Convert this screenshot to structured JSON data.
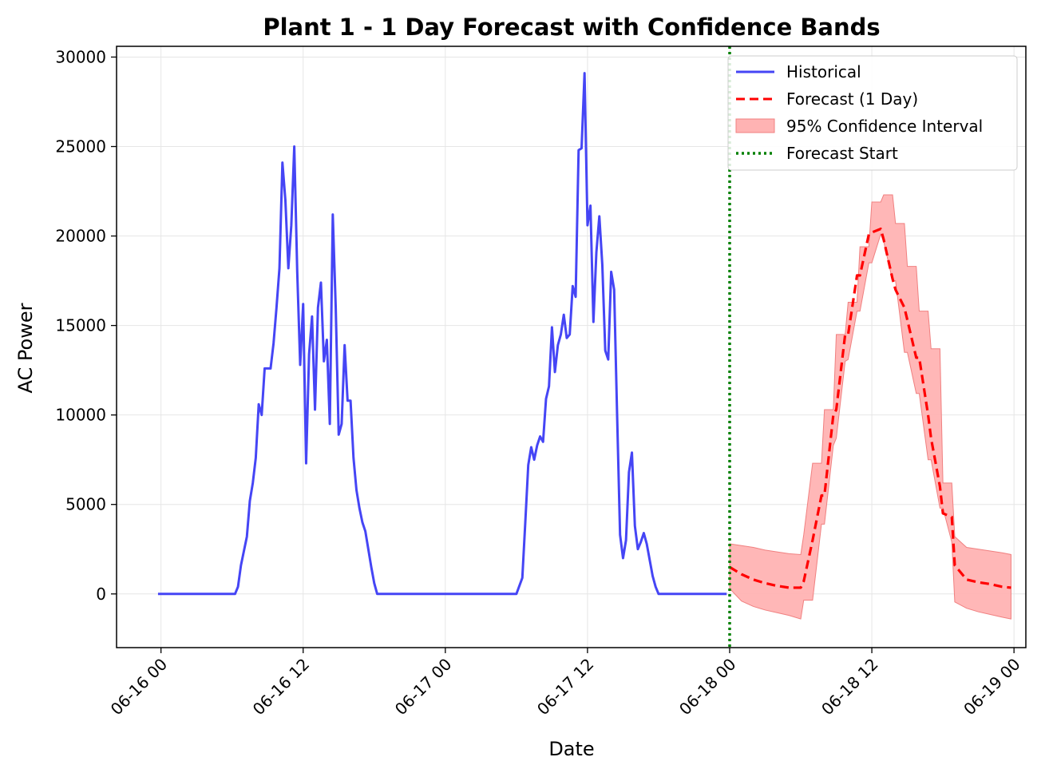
{
  "chart_data": {
    "type": "line",
    "title": "Plant 1 - 1 Day Forecast with Confidence Bands",
    "xlabel": "Date",
    "ylabel": "AC Power",
    "x_ticks": [
      "06-16 00",
      "06-16 12",
      "06-17 00",
      "06-17 12",
      "06-18 00",
      "06-18 12",
      "06-19 00"
    ],
    "y_ticks": [
      0,
      5000,
      10000,
      15000,
      20000,
      25000,
      30000
    ],
    "xlim": [
      "06-15 20:15",
      "06-19 01:00"
    ],
    "ylim": [
      -3000,
      30600
    ],
    "grid": true,
    "legend_position": "top-right",
    "forecast_start": "06-18 00:00",
    "colors": {
      "historical": "#4545f5",
      "forecast": "#ff0000",
      "band": "#ffb3b3",
      "band_edge": "#f08080",
      "forecast_start": "#008000"
    },
    "legend": {
      "historical": "Historical",
      "forecast": "Forecast (1 Day)",
      "band": "95% Confidence Interval",
      "forecast_start": "Forecast Start"
    },
    "series": [
      {
        "name": "Historical",
        "x": [
          "06-15 23:45",
          "06-16 06:15",
          "06-16 06:30",
          "06-16 06:45",
          "06-16 07:00",
          "06-16 07:15",
          "06-16 07:30",
          "06-16 07:45",
          "06-16 08:00",
          "06-16 08:15",
          "06-16 08:30",
          "06-16 08:45",
          "06-16 09:00",
          "06-16 09:15",
          "06-16 09:30",
          "06-16 09:45",
          "06-16 10:00",
          "06-16 10:15",
          "06-16 10:30",
          "06-16 10:45",
          "06-16 11:00",
          "06-16 11:15",
          "06-16 11:30",
          "06-16 11:45",
          "06-16 12:00",
          "06-16 12:15",
          "06-16 12:30",
          "06-16 12:45",
          "06-16 13:00",
          "06-16 13:15",
          "06-16 13:30",
          "06-16 13:45",
          "06-16 14:00",
          "06-16 14:15",
          "06-16 14:30",
          "06-16 14:45",
          "06-16 15:00",
          "06-16 15:15",
          "06-16 15:30",
          "06-16 15:45",
          "06-16 16:00",
          "06-16 16:15",
          "06-16 16:30",
          "06-16 16:45",
          "06-16 17:00",
          "06-16 17:15",
          "06-16 17:30",
          "06-16 17:45",
          "06-16 18:00",
          "06-16 18:15",
          "06-16 18:30",
          "06-16 18:45",
          "06-17 06:00",
          "06-17 06:30",
          "06-17 06:45",
          "06-17 07:00",
          "06-17 07:15",
          "06-17 07:30",
          "06-17 07:45",
          "06-17 08:00",
          "06-17 08:15",
          "06-17 08:30",
          "06-17 08:45",
          "06-17 09:00",
          "06-17 09:15",
          "06-17 09:30",
          "06-17 09:45",
          "06-17 10:00",
          "06-17 10:15",
          "06-17 10:30",
          "06-17 10:45",
          "06-17 11:00",
          "06-17 11:15",
          "06-17 11:30",
          "06-17 11:45",
          "06-17 12:00",
          "06-17 12:15",
          "06-17 12:30",
          "06-17 12:45",
          "06-17 13:00",
          "06-17 13:15",
          "06-17 13:30",
          "06-17 13:45",
          "06-17 14:00",
          "06-17 14:15",
          "06-17 14:30",
          "06-17 14:45",
          "06-17 15:00",
          "06-17 15:15",
          "06-17 15:30",
          "06-17 15:45",
          "06-17 16:00",
          "06-17 16:15",
          "06-17 16:30",
          "06-17 16:45",
          "06-17 17:00",
          "06-17 17:15",
          "06-17 17:30",
          "06-17 17:45",
          "06-17 18:00",
          "06-17 23:45"
        ],
        "values": [
          0,
          0,
          400,
          1600,
          2400,
          3200,
          5200,
          6200,
          7600,
          10600,
          10000,
          12600,
          12600,
          12600,
          14000,
          16000,
          18200,
          24100,
          22000,
          18200,
          20600,
          25000,
          18000,
          12800,
          16200,
          7300,
          13400,
          15500,
          10300,
          16000,
          17400,
          13000,
          14200,
          9500,
          21200,
          16000,
          8900,
          9500,
          13900,
          10800,
          10800,
          7600,
          5800,
          4800,
          4000,
          3500,
          2500,
          1500,
          600,
          0,
          0,
          0,
          0,
          900,
          4000,
          7200,
          8200,
          7500,
          8300,
          8800,
          8500,
          10900,
          11600,
          14900,
          12400,
          13900,
          14500,
          15600,
          14300,
          14500,
          17200,
          16600,
          24800,
          24900,
          29100,
          20600,
          21700,
          15200,
          19100,
          21100,
          18400,
          13600,
          13100,
          18000,
          17000,
          10000,
          3300,
          2000,
          3000,
          6800,
          7900,
          3800,
          2500,
          2900,
          3400,
          2800,
          1900,
          1000,
          400,
          0,
          0
        ]
      },
      {
        "name": "Forecast (1 Day)",
        "x": [
          "06-18 00:00",
          "06-18 01:00",
          "06-18 02:00",
          "06-18 03:00",
          "06-18 04:00",
          "06-18 05:00",
          "06-18 06:00",
          "06-18 06:15",
          "06-18 07:00",
          "06-18 07:45",
          "06-18 08:00",
          "06-18 08:45",
          "06-18 09:00",
          "06-18 09:45",
          "06-18 10:00",
          "06-18 10:45",
          "06-18 11:00",
          "06-18 11:45",
          "06-18 12:00",
          "06-18 12:45",
          "06-18 13:00",
          "06-18 13:45",
          "06-18 14:00",
          "06-18 14:45",
          "06-18 15:00",
          "06-18 15:45",
          "06-18 16:00",
          "06-18 16:45",
          "06-18 17:00",
          "06-18 17:45",
          "06-18 18:00",
          "06-18 18:45",
          "06-18 19:00",
          "06-18 20:00",
          "06-18 21:00",
          "06-18 22:00",
          "06-18 23:00",
          "06-18 23:45"
        ],
        "values": [
          1500,
          1100,
          800,
          600,
          450,
          350,
          350,
          700,
          3000,
          5500,
          5500,
          10000,
          10300,
          14500,
          14500,
          17800,
          17800,
          20100,
          20200,
          20400,
          19800,
          17600,
          17000,
          16000,
          15300,
          13200,
          13200,
          10000,
          8700,
          6000,
          4500,
          4300,
          1600,
          800,
          650,
          550,
          400,
          350
        ],
        "lower": [
          300,
          -400,
          -700,
          -900,
          -1050,
          -1200,
          -1400,
          -350,
          -350,
          3900,
          3900,
          8300,
          8700,
          13000,
          13100,
          15800,
          15800,
          18500,
          18500,
          20100,
          19700,
          17500,
          17500,
          13500,
          13500,
          11200,
          11200,
          7500,
          7500,
          4800,
          4800,
          2900,
          -450,
          -800,
          -1000,
          -1150,
          -1300,
          -1400
        ],
        "upper": [
          2800,
          2700,
          2600,
          2450,
          2350,
          2250,
          2200,
          3300,
          7300,
          7300,
          10300,
          10300,
          14500,
          14500,
          16300,
          16300,
          19400,
          19400,
          21900,
          21900,
          22300,
          22300,
          20700,
          20700,
          18300,
          18300,
          15800,
          15800,
          13700,
          13700,
          6200,
          6200,
          3200,
          2600,
          2500,
          2400,
          2300,
          2200
        ]
      }
    ]
  }
}
